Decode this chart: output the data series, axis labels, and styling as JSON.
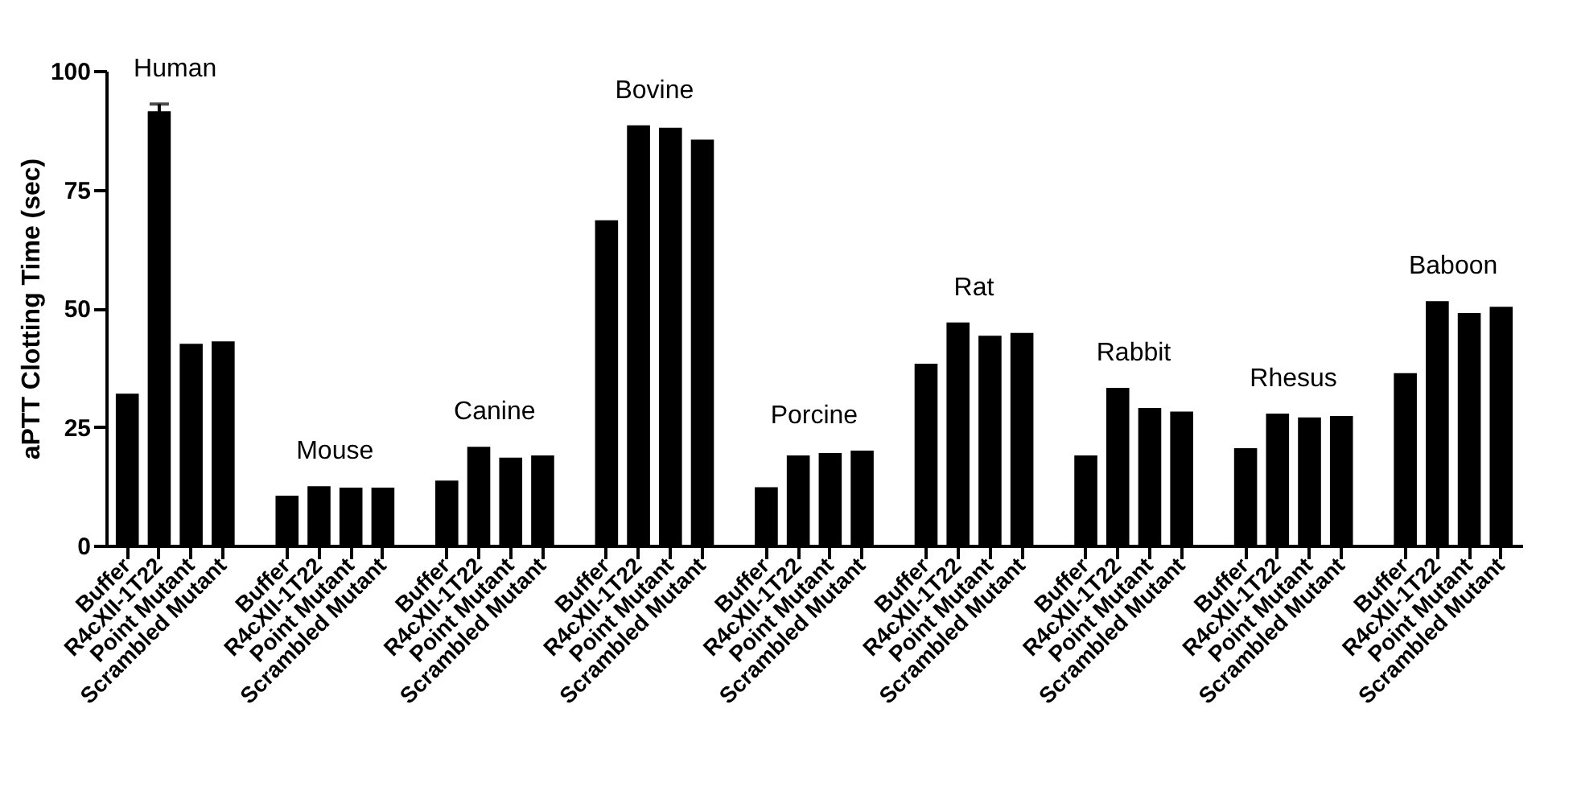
{
  "chart_data": {
    "type": "bar",
    "ylabel": "aPTT  Clotting  Time  (sec)",
    "categories": [
      "Buffer",
      "R4cXII-1T22",
      "Point Mutant",
      "Scrambled Mutant",
      null,
      "Buffer",
      "R4cXII-1T22",
      "Point Mutant",
      "Scrambled Mutant",
      null,
      "Buffer",
      "R4cXII-1T22",
      "Point Mutant",
      "Scrambled Mutant",
      null,
      "Buffer",
      "R4cXII-1T22",
      "Point Mutant",
      "Scrambled Mutant",
      null,
      "Buffer",
      "R4cXII-1T22",
      "Point Mutant",
      "Scrambled Mutant",
      null,
      "Buffer",
      "R4cXII-1T22",
      "Point Mutant",
      "Scrambled Mutant",
      null,
      "Buffer",
      "R4cXII-1T22",
      "Point Mutant",
      "Scrambled Mutant",
      null,
      "Buffer",
      "R4cXII-1T22",
      "Point Mutant",
      "Scrambled Mutant",
      null,
      "Buffer",
      "R4cXII-1T22",
      "Point Mutant",
      "Scrambled Mutant"
    ],
    "values": [
      32,
      91.5,
      42.5,
      43,
      null,
      10.5,
      12.5,
      12.2,
      12.2,
      null,
      13.7,
      20.8,
      18.5,
      19,
      null,
      68.5,
      88.5,
      88,
      85.5,
      null,
      12.3,
      19,
      19.5,
      20,
      null,
      38.3,
      47,
      44.2,
      44.8,
      null,
      19,
      33.2,
      29,
      28.2,
      null,
      20.5,
      27.8,
      27,
      27.3,
      null,
      36.3,
      51.5,
      49,
      50.3
    ],
    "errors": [
      null,
      1.5,
      null,
      null,
      null,
      null,
      null,
      null,
      null,
      null,
      null,
      null,
      null,
      null,
      null,
      null,
      null,
      null,
      null,
      null,
      null,
      null,
      null,
      null,
      null,
      null,
      null,
      null,
      null,
      null,
      null,
      null,
      null,
      null,
      null,
      null,
      null,
      null,
      null,
      null,
      null,
      null,
      null,
      null
    ],
    "color": "#000000",
    "annotations": [
      "Human",
      "Mouse",
      "Canine",
      "Bovine",
      "Porcine",
      "Rat",
      "Rabbit",
      "Rhesus",
      "Baboon"
    ],
    "ylim": [
      0,
      100
    ],
    "yticks": [
      0,
      25,
      50,
      75,
      100
    ],
    "grid": false
  }
}
